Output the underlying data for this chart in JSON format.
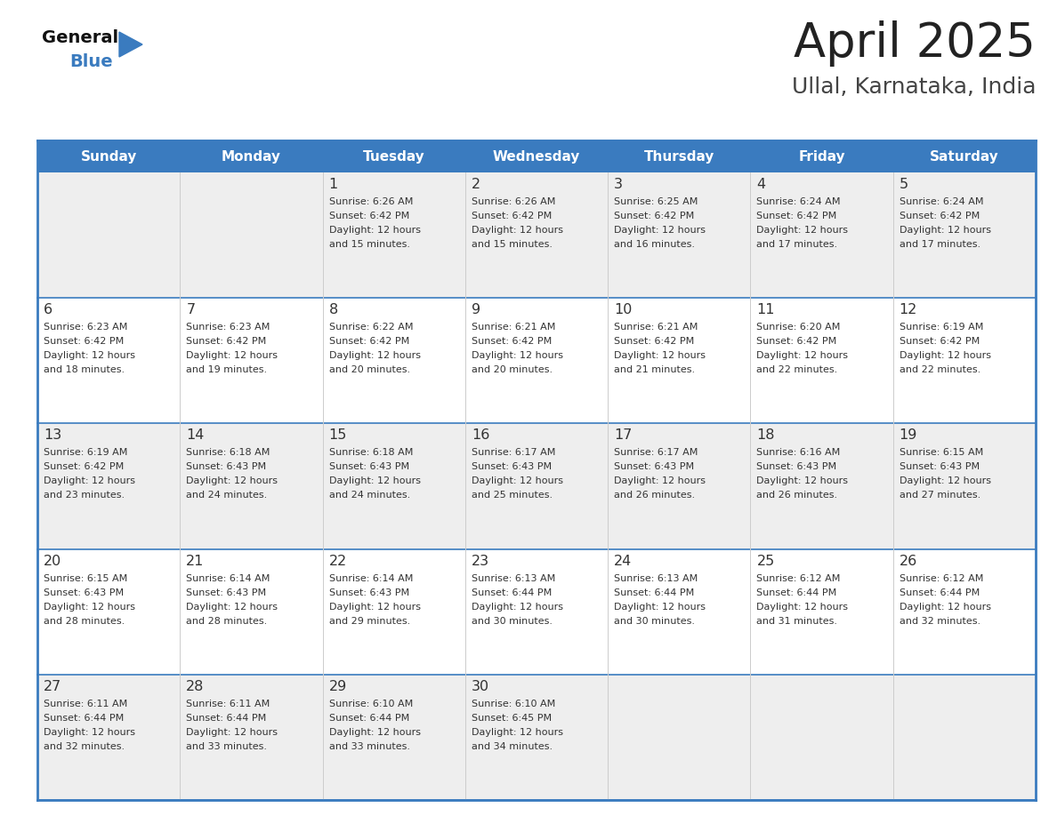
{
  "title": "April 2025",
  "subtitle": "Ullal, Karnataka, India",
  "days_of_week": [
    "Sunday",
    "Monday",
    "Tuesday",
    "Wednesday",
    "Thursday",
    "Friday",
    "Saturday"
  ],
  "header_bg": "#3a7bbf",
  "header_text": "#ffffff",
  "row_bg_odd": "#eeeeee",
  "row_bg_even": "#ffffff",
  "border_color": "#3a7bbf",
  "day_num_color": "#333333",
  "cell_text_color": "#333333",
  "title_color": "#222222",
  "subtitle_color": "#444444",
  "logo_general_color": "#111111",
  "logo_blue_color": "#3a7bbf",
  "weeks": [
    {
      "days": [
        {
          "date": "",
          "sunrise": "",
          "sunset": "",
          "daylight": ""
        },
        {
          "date": "",
          "sunrise": "",
          "sunset": "",
          "daylight": ""
        },
        {
          "date": "1",
          "sunrise": "6:26 AM",
          "sunset": "6:42 PM",
          "daylight": "12 hours and 15 minutes."
        },
        {
          "date": "2",
          "sunrise": "6:26 AM",
          "sunset": "6:42 PM",
          "daylight": "12 hours and 15 minutes."
        },
        {
          "date": "3",
          "sunrise": "6:25 AM",
          "sunset": "6:42 PM",
          "daylight": "12 hours and 16 minutes."
        },
        {
          "date": "4",
          "sunrise": "6:24 AM",
          "sunset": "6:42 PM",
          "daylight": "12 hours and 17 minutes."
        },
        {
          "date": "5",
          "sunrise": "6:24 AM",
          "sunset": "6:42 PM",
          "daylight": "12 hours and 17 minutes."
        }
      ]
    },
    {
      "days": [
        {
          "date": "6",
          "sunrise": "6:23 AM",
          "sunset": "6:42 PM",
          "daylight": "12 hours and 18 minutes."
        },
        {
          "date": "7",
          "sunrise": "6:23 AM",
          "sunset": "6:42 PM",
          "daylight": "12 hours and 19 minutes."
        },
        {
          "date": "8",
          "sunrise": "6:22 AM",
          "sunset": "6:42 PM",
          "daylight": "12 hours and 20 minutes."
        },
        {
          "date": "9",
          "sunrise": "6:21 AM",
          "sunset": "6:42 PM",
          "daylight": "12 hours and 20 minutes."
        },
        {
          "date": "10",
          "sunrise": "6:21 AM",
          "sunset": "6:42 PM",
          "daylight": "12 hours and 21 minutes."
        },
        {
          "date": "11",
          "sunrise": "6:20 AM",
          "sunset": "6:42 PM",
          "daylight": "12 hours and 22 minutes."
        },
        {
          "date": "12",
          "sunrise": "6:19 AM",
          "sunset": "6:42 PM",
          "daylight": "12 hours and 22 minutes."
        }
      ]
    },
    {
      "days": [
        {
          "date": "13",
          "sunrise": "6:19 AM",
          "sunset": "6:42 PM",
          "daylight": "12 hours and 23 minutes."
        },
        {
          "date": "14",
          "sunrise": "6:18 AM",
          "sunset": "6:43 PM",
          "daylight": "12 hours and 24 minutes."
        },
        {
          "date": "15",
          "sunrise": "6:18 AM",
          "sunset": "6:43 PM",
          "daylight": "12 hours and 24 minutes."
        },
        {
          "date": "16",
          "sunrise": "6:17 AM",
          "sunset": "6:43 PM",
          "daylight": "12 hours and 25 minutes."
        },
        {
          "date": "17",
          "sunrise": "6:17 AM",
          "sunset": "6:43 PM",
          "daylight": "12 hours and 26 minutes."
        },
        {
          "date": "18",
          "sunrise": "6:16 AM",
          "sunset": "6:43 PM",
          "daylight": "12 hours and 26 minutes."
        },
        {
          "date": "19",
          "sunrise": "6:15 AM",
          "sunset": "6:43 PM",
          "daylight": "12 hours and 27 minutes."
        }
      ]
    },
    {
      "days": [
        {
          "date": "20",
          "sunrise": "6:15 AM",
          "sunset": "6:43 PM",
          "daylight": "12 hours and 28 minutes."
        },
        {
          "date": "21",
          "sunrise": "6:14 AM",
          "sunset": "6:43 PM",
          "daylight": "12 hours and 28 minutes."
        },
        {
          "date": "22",
          "sunrise": "6:14 AM",
          "sunset": "6:43 PM",
          "daylight": "12 hours and 29 minutes."
        },
        {
          "date": "23",
          "sunrise": "6:13 AM",
          "sunset": "6:44 PM",
          "daylight": "12 hours and 30 minutes."
        },
        {
          "date": "24",
          "sunrise": "6:13 AM",
          "sunset": "6:44 PM",
          "daylight": "12 hours and 30 minutes."
        },
        {
          "date": "25",
          "sunrise": "6:12 AM",
          "sunset": "6:44 PM",
          "daylight": "12 hours and 31 minutes."
        },
        {
          "date": "26",
          "sunrise": "6:12 AM",
          "sunset": "6:44 PM",
          "daylight": "12 hours and 32 minutes."
        }
      ]
    },
    {
      "days": [
        {
          "date": "27",
          "sunrise": "6:11 AM",
          "sunset": "6:44 PM",
          "daylight": "12 hours and 32 minutes."
        },
        {
          "date": "28",
          "sunrise": "6:11 AM",
          "sunset": "6:44 PM",
          "daylight": "12 hours and 33 minutes."
        },
        {
          "date": "29",
          "sunrise": "6:10 AM",
          "sunset": "6:44 PM",
          "daylight": "12 hours and 33 minutes."
        },
        {
          "date": "30",
          "sunrise": "6:10 AM",
          "sunset": "6:45 PM",
          "daylight": "12 hours and 34 minutes."
        },
        {
          "date": "",
          "sunrise": "",
          "sunset": "",
          "daylight": ""
        },
        {
          "date": "",
          "sunrise": "",
          "sunset": "",
          "daylight": ""
        },
        {
          "date": "",
          "sunrise": "",
          "sunset": "",
          "daylight": ""
        }
      ]
    }
  ]
}
